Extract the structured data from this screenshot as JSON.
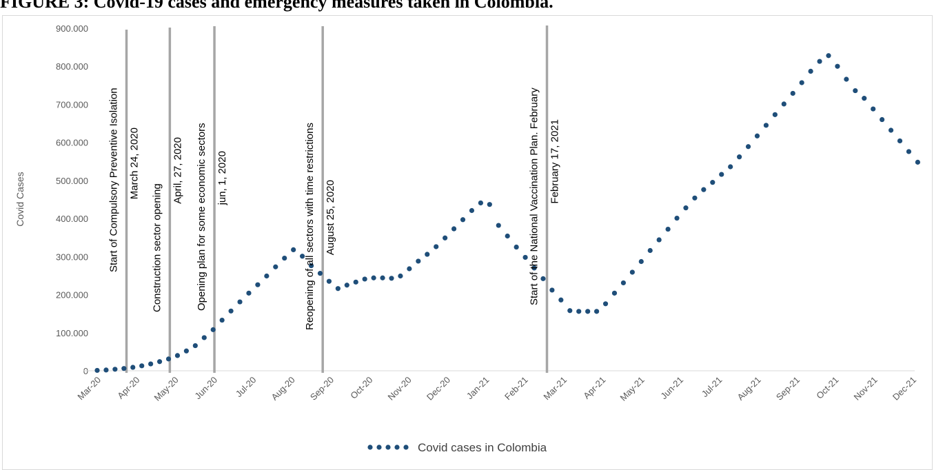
{
  "figure_title": "FIGURE 3: Covid-19 cases and emergency measures taken in Colombia.",
  "chart_data": {
    "type": "scatter",
    "title": "",
    "ylabel": "Covid Cases",
    "xlabel": "",
    "ylim": [
      0,
      900000
    ],
    "y_ticks": [
      0,
      100000,
      200000,
      300000,
      400000,
      500000,
      600000,
      700000,
      800000,
      900000
    ],
    "y_tick_labels": [
      "0",
      "100.000",
      "200.000",
      "300.000",
      "400.000",
      "500.000",
      "600.000",
      "700.000",
      "800.000",
      "900.000"
    ],
    "x_tick_labels": [
      "Mar-20",
      "Apr-20",
      "May-20",
      "Jun-20",
      "Jul-20",
      "Aug-20",
      "Sep-20",
      "Oct-20",
      "Nov-20",
      "Dec-20",
      "Jan-21",
      "Feb-21",
      "Mar-21",
      "Apr-21",
      "May-21",
      "Jun-21",
      "Jul-21",
      "Aug-21",
      "Sep-21",
      "Oct-21",
      "Nov-21",
      "Dec-21"
    ],
    "x_range": [
      "2020-03-01",
      "2021-12-01"
    ],
    "grid": false,
    "legend_position": "bottom",
    "series": [
      {
        "name": "Covid cases in Colombia",
        "color": "#1f4e79",
        "marker": "circle",
        "x": [
          "2020-03-01",
          "2020-03-08",
          "2020-03-15",
          "2020-03-22",
          "2020-03-29",
          "2020-04-05",
          "2020-04-12",
          "2020-04-19",
          "2020-04-26",
          "2020-05-03",
          "2020-05-10",
          "2020-05-17",
          "2020-05-24",
          "2020-05-31",
          "2020-06-07",
          "2020-06-14",
          "2020-06-21",
          "2020-06-28",
          "2020-07-05",
          "2020-07-12",
          "2020-07-19",
          "2020-07-26",
          "2020-08-02",
          "2020-08-09",
          "2020-08-16",
          "2020-08-23",
          "2020-08-30",
          "2020-09-06",
          "2020-09-13",
          "2020-09-20",
          "2020-09-27",
          "2020-10-04",
          "2020-10-11",
          "2020-10-18",
          "2020-10-25",
          "2020-11-01",
          "2020-11-08",
          "2020-11-15",
          "2020-11-22",
          "2020-11-29",
          "2020-12-06",
          "2020-12-13",
          "2020-12-20",
          "2020-12-27",
          "2021-01-03",
          "2021-01-10",
          "2021-01-17",
          "2021-01-24",
          "2021-01-31",
          "2021-02-07",
          "2021-02-14",
          "2021-02-21",
          "2021-02-28",
          "2021-03-07",
          "2021-03-14",
          "2021-03-21",
          "2021-03-28",
          "2021-04-04",
          "2021-04-11",
          "2021-04-18",
          "2021-04-25",
          "2021-05-02",
          "2021-05-09",
          "2021-05-16",
          "2021-05-23",
          "2021-05-30",
          "2021-06-06",
          "2021-06-13",
          "2021-06-20",
          "2021-06-27",
          "2021-07-04",
          "2021-07-11",
          "2021-07-18",
          "2021-07-25",
          "2021-08-01",
          "2021-08-08",
          "2021-08-15",
          "2021-08-22",
          "2021-08-29",
          "2021-09-05",
          "2021-09-12",
          "2021-09-19",
          "2021-09-26",
          "2021-10-03",
          "2021-10-10",
          "2021-10-17",
          "2021-10-24",
          "2021-10-31",
          "2021-11-07",
          "2021-11-14",
          "2021-11-21",
          "2021-11-28",
          "2021-12-05"
        ],
        "y": [
          1000,
          2000,
          4000,
          6000,
          9000,
          13000,
          18000,
          24000,
          31000,
          40000,
          52000,
          66000,
          87000,
          108000,
          133000,
          157000,
          181000,
          204000,
          226000,
          249000,
          273000,
          296000,
          318000,
          301000,
          276000,
          256000,
          235000,
          216000,
          225000,
          233000,
          241000,
          244000,
          244000,
          243000,
          249000,
          268000,
          288000,
          306000,
          326000,
          349000,
          373000,
          397000,
          421000,
          441000,
          437000,
          382000,
          354000,
          325000,
          298000,
          270000,
          242000,
          212000,
          186000,
          158000,
          156000,
          156000,
          156000,
          176000,
          204000,
          231000,
          259000,
          287000,
          316000,
          344000,
          372000,
          401000,
          428000,
          454000,
          476000,
          495000,
          516000,
          536000,
          562000,
          589000,
          617000,
          645000,
          673000,
          701000,
          729000,
          757000,
          787000,
          813000,
          828000,
          800000,
          766000,
          736000,
          716000,
          688000,
          660000,
          632000,
          604000,
          576000,
          548000
        ]
      }
    ],
    "annotations": [
      {
        "date": "2020-03-24",
        "line1": "Start of Compulsory Preventive Isolation",
        "line2": "March 24, 2020"
      },
      {
        "date": "2020-04-27",
        "line1": "Construction sector opening",
        "line2": "April, 27, 2020"
      },
      {
        "date": "2020-06-01",
        "line1": "Opening plan for some economic sectors",
        "line2": "jun, 1, 2020"
      },
      {
        "date": "2020-08-25",
        "line1": "Reopening of all sectors with time restrictions",
        "line2": "August 25, 2020"
      },
      {
        "date": "2021-02-17",
        "line1": "Start of the National Vaccination Plan. February",
        "line2": "February 17, 2021"
      }
    ]
  }
}
